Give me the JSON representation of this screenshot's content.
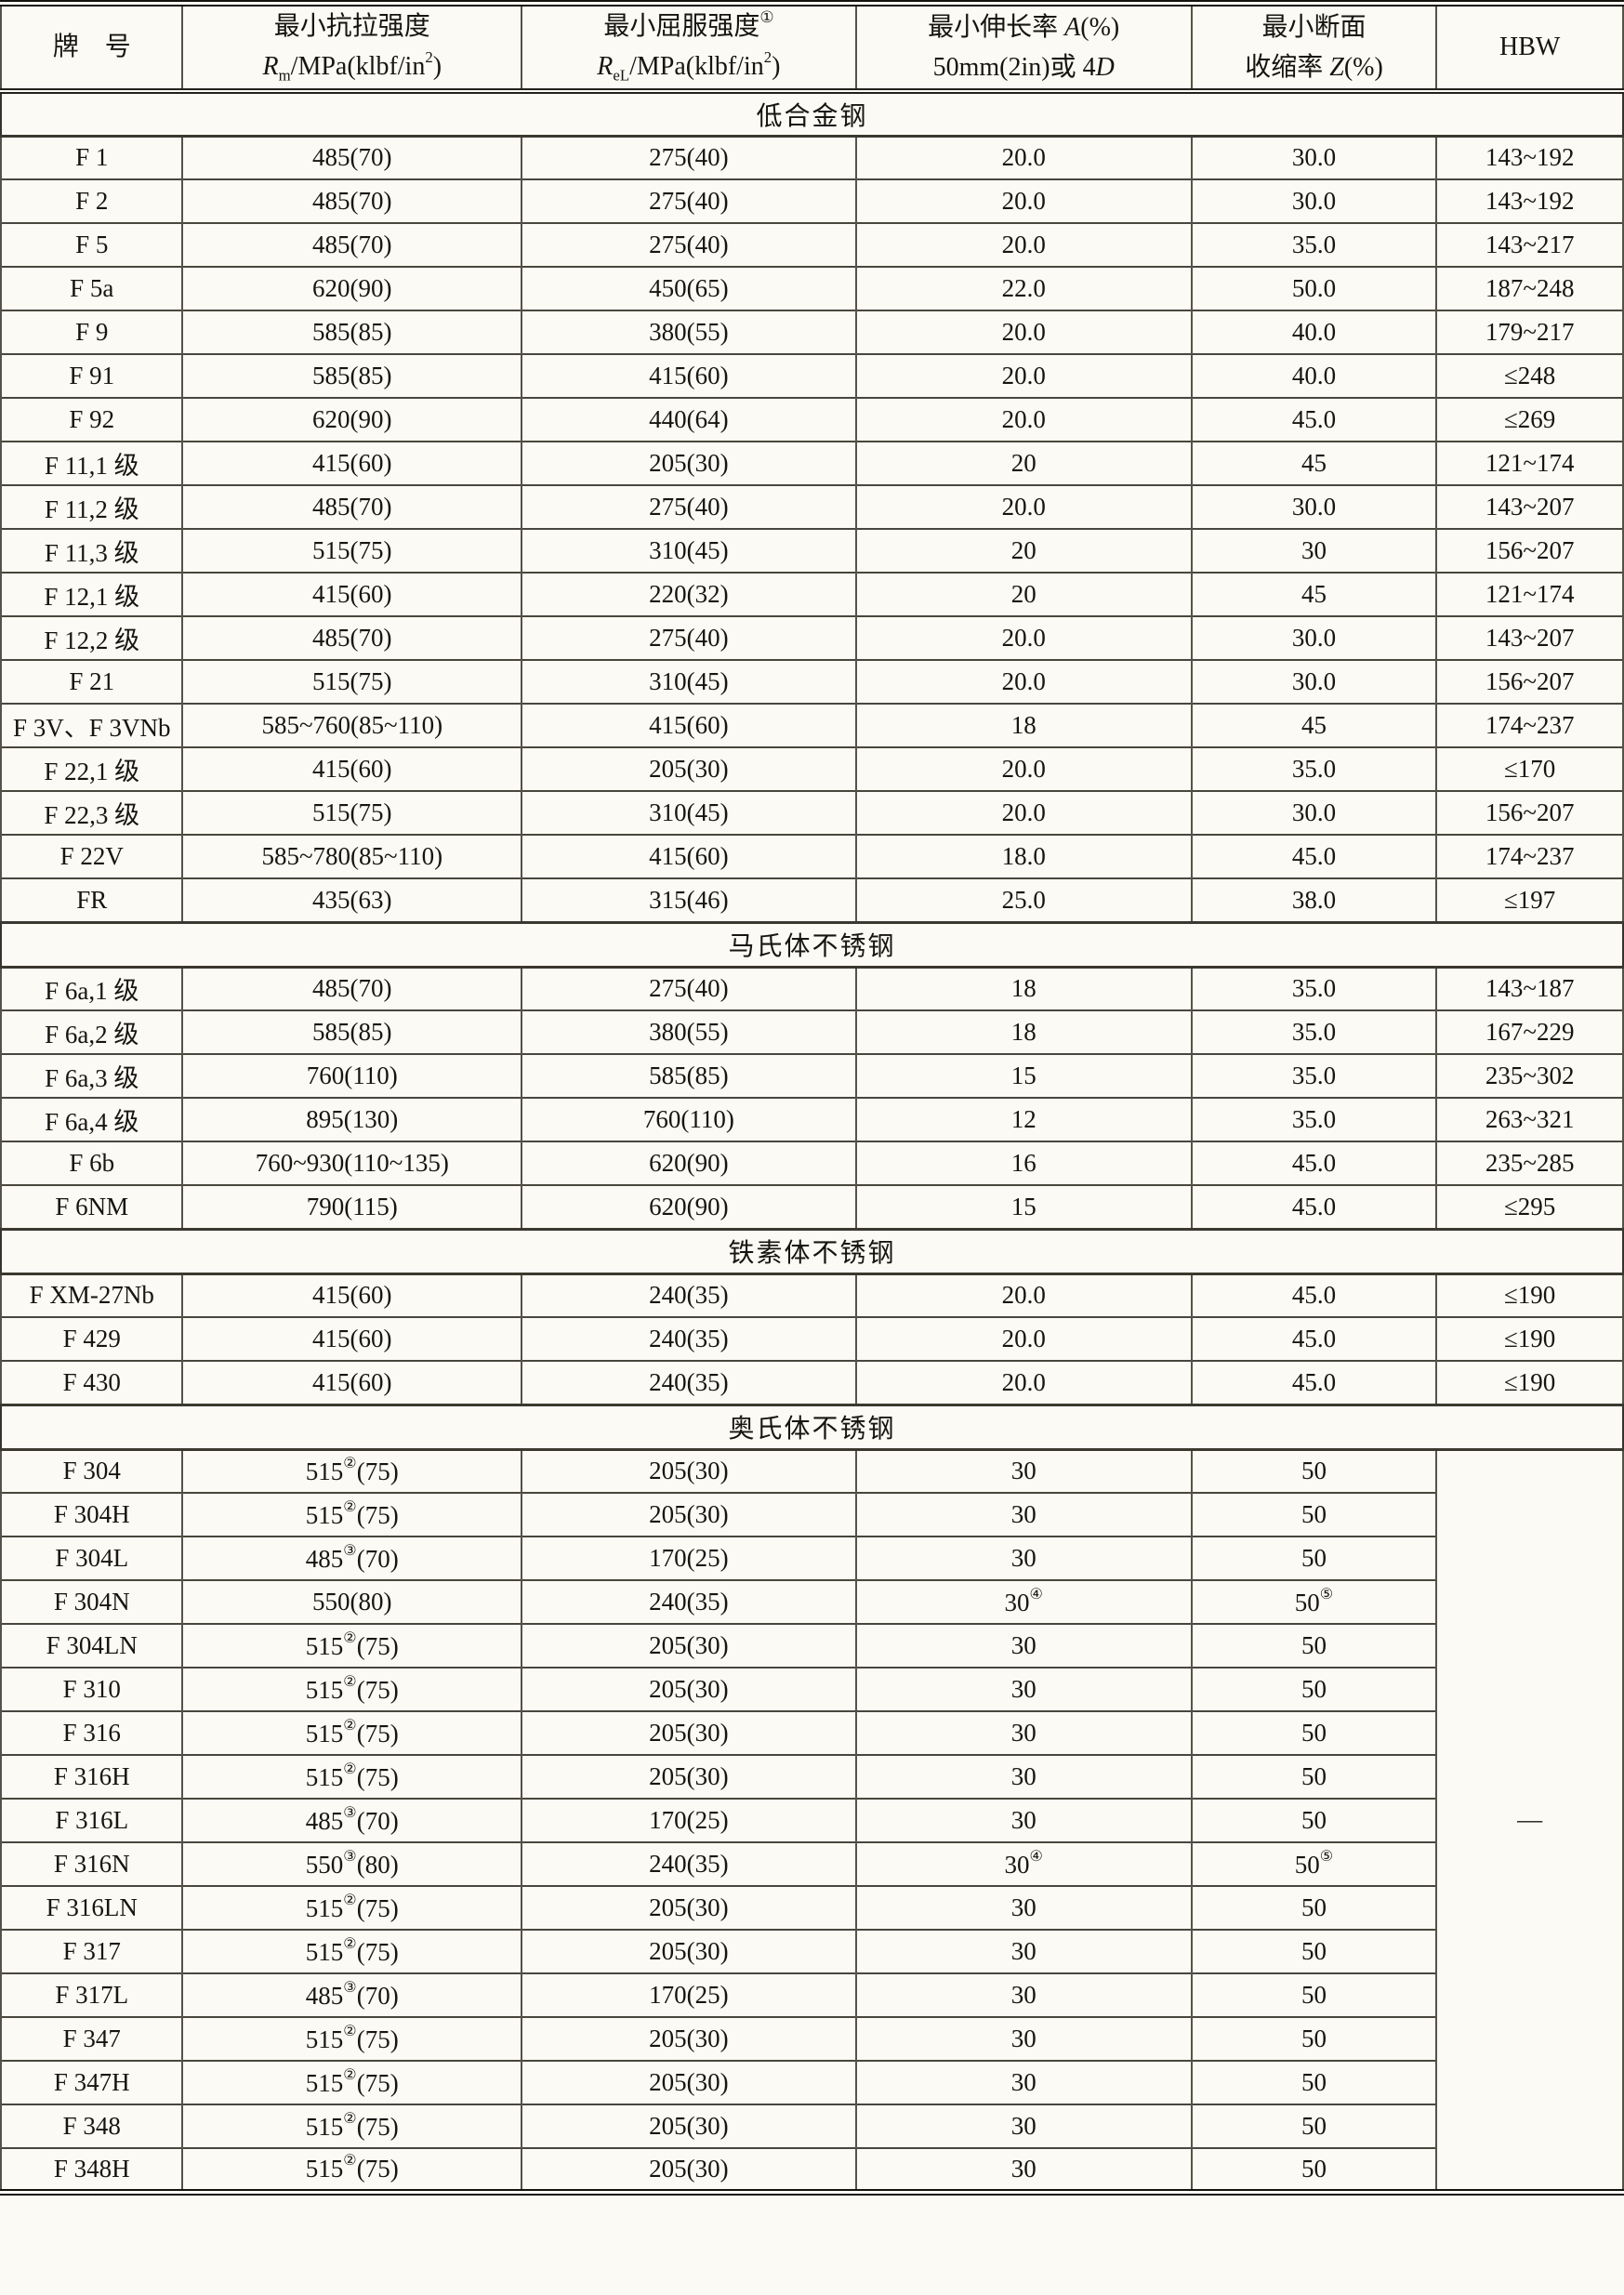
{
  "table": {
    "header": {
      "col_grade": "牌　号",
      "col_tensile_line1": "最小抗拉强度",
      "col_tensile_line2": "*R*_{m}/MPa(klbf/in^{2})",
      "col_yield_line1": "最小屈服强度^{①}",
      "col_yield_line2": "*R*_{eL}/MPa(klbf/in^{2})",
      "col_elong_line1": "最小伸长率 *A*(%)",
      "col_elong_line2": "50mm(2in)或 4*D*",
      "col_area_line1": "最小断面",
      "col_area_line2": "收缩率 *Z*(%)",
      "col_hbw": "HBW"
    },
    "sections": [
      {
        "title": "低合金钢",
        "rows": [
          [
            "F 1",
            "485(70)",
            "275(40)",
            "20.0",
            "30.0",
            "143~192"
          ],
          [
            "F 2",
            "485(70)",
            "275(40)",
            "20.0",
            "30.0",
            "143~192"
          ],
          [
            "F 5",
            "485(70)",
            "275(40)",
            "20.0",
            "35.0",
            "143~217"
          ],
          [
            "F 5a",
            "620(90)",
            "450(65)",
            "22.0",
            "50.0",
            "187~248"
          ],
          [
            "F 9",
            "585(85)",
            "380(55)",
            "20.0",
            "40.0",
            "179~217"
          ],
          [
            "F 91",
            "585(85)",
            "415(60)",
            "20.0",
            "40.0",
            "≤248"
          ],
          [
            "F 92",
            "620(90)",
            "440(64)",
            "20.0",
            "45.0",
            "≤269"
          ],
          [
            "F 11,1 级",
            "415(60)",
            "205(30)",
            "20",
            "45",
            "121~174"
          ],
          [
            "F 11,2 级",
            "485(70)",
            "275(40)",
            "20.0",
            "30.0",
            "143~207"
          ],
          [
            "F 11,3 级",
            "515(75)",
            "310(45)",
            "20",
            "30",
            "156~207"
          ],
          [
            "F 12,1 级",
            "415(60)",
            "220(32)",
            "20",
            "45",
            "121~174"
          ],
          [
            "F 12,2 级",
            "485(70)",
            "275(40)",
            "20.0",
            "30.0",
            "143~207"
          ],
          [
            "F 21",
            "515(75)",
            "310(45)",
            "20.0",
            "30.0",
            "156~207"
          ],
          [
            "F 3V、F 3VNb",
            "585~760(85~110)",
            "415(60)",
            "18",
            "45",
            "174~237"
          ],
          [
            "F 22,1 级",
            "415(60)",
            "205(30)",
            "20.0",
            "35.0",
            "≤170"
          ],
          [
            "F 22,3 级",
            "515(75)",
            "310(45)",
            "20.0",
            "30.0",
            "156~207"
          ],
          [
            "F 22V",
            "585~780(85~110)",
            "415(60)",
            "18.0",
            "45.0",
            "174~237"
          ],
          [
            "FR",
            "435(63)",
            "315(46)",
            "25.0",
            "38.0",
            "≤197"
          ]
        ]
      },
      {
        "title": "马氏体不锈钢",
        "rows": [
          [
            "F 6a,1 级",
            "485(70)",
            "275(40)",
            "18",
            "35.0",
            "143~187"
          ],
          [
            "F 6a,2 级",
            "585(85)",
            "380(55)",
            "18",
            "35.0",
            "167~229"
          ],
          [
            "F 6a,3 级",
            "760(110)",
            "585(85)",
            "15",
            "35.0",
            "235~302"
          ],
          [
            "F 6a,4 级",
            "895(130)",
            "760(110)",
            "12",
            "35.0",
            "263~321"
          ],
          [
            "F 6b",
            "760~930(110~135)",
            "620(90)",
            "16",
            "45.0",
            "235~285"
          ],
          [
            "F 6NM",
            "790(115)",
            "620(90)",
            "15",
            "45.0",
            "≤295"
          ]
        ]
      },
      {
        "title": "铁素体不锈钢",
        "rows": [
          [
            "F XM-27Nb",
            "415(60)",
            "240(35)",
            "20.0",
            "45.0",
            "≤190"
          ],
          [
            "F 429",
            "415(60)",
            "240(35)",
            "20.0",
            "45.0",
            "≤190"
          ],
          [
            "F 430",
            "415(60)",
            "240(35)",
            "20.0",
            "45.0",
            "≤190"
          ]
        ]
      },
      {
        "title": "奥氏体不锈钢",
        "merged_hbw": "—",
        "rows": [
          [
            "F 304",
            "515^{②}(75)",
            "205(30)",
            "30",
            "50"
          ],
          [
            "F 304H",
            "515^{②}(75)",
            "205(30)",
            "30",
            "50"
          ],
          [
            "F 304L",
            "485^{③}(70)",
            "170(25)",
            "30",
            "50"
          ],
          [
            "F 304N",
            "550(80)",
            "240(35)",
            "30^{④}",
            "50^{⑤}"
          ],
          [
            "F 304LN",
            "515^{②}(75)",
            "205(30)",
            "30",
            "50"
          ],
          [
            "F 310",
            "515^{②}(75)",
            "205(30)",
            "30",
            "50"
          ],
          [
            "F 316",
            "515^{②}(75)",
            "205(30)",
            "30",
            "50"
          ],
          [
            "F 316H",
            "515^{②}(75)",
            "205(30)",
            "30",
            "50"
          ],
          [
            "F 316L",
            "485^{③}(70)",
            "170(25)",
            "30",
            "50"
          ],
          [
            "F 316N",
            "550^{③}(80)",
            "240(35)",
            "30^{④}",
            "50^{⑤}"
          ],
          [
            "F 316LN",
            "515^{②}(75)",
            "205(30)",
            "30",
            "50"
          ],
          [
            "F 317",
            "515^{②}(75)",
            "205(30)",
            "30",
            "50"
          ],
          [
            "F 317L",
            "485^{③}(70)",
            "170(25)",
            "30",
            "50"
          ],
          [
            "F 347",
            "515^{②}(75)",
            "205(30)",
            "30",
            "50"
          ],
          [
            "F 347H",
            "515^{②}(75)",
            "205(30)",
            "30",
            "50"
          ],
          [
            "F 348",
            "515^{②}(75)",
            "205(30)",
            "30",
            "50"
          ],
          [
            "F 348H",
            "515^{②}(75)",
            "205(30)",
            "30",
            "50"
          ]
        ]
      }
    ]
  }
}
